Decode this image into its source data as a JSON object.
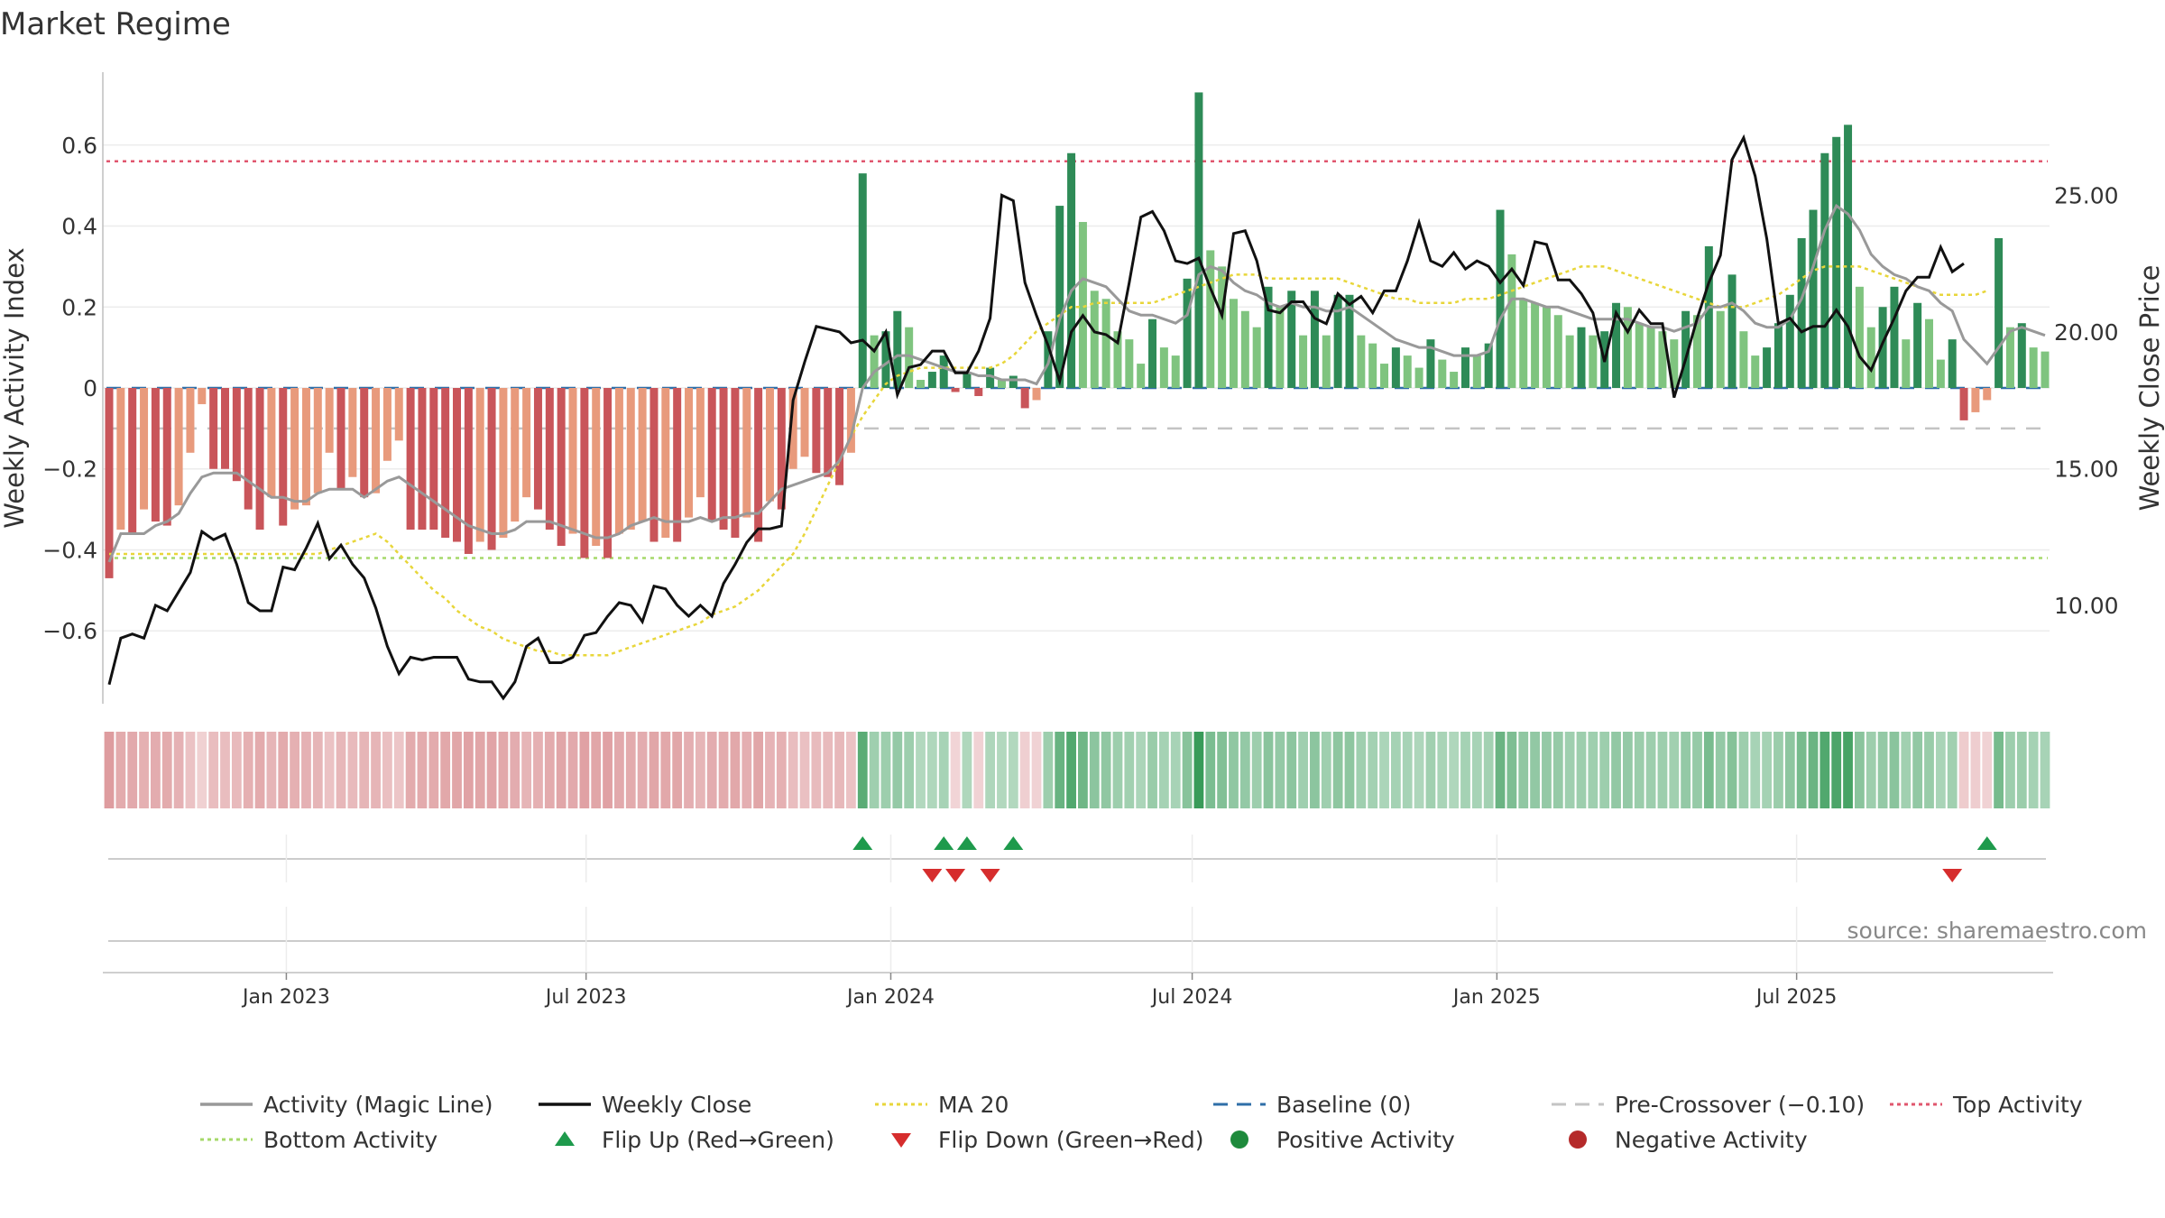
{
  "title": "Market Regime",
  "source": "source: sharemaestro.com",
  "axes": {
    "left_label": "Weekly Activity Index",
    "right_label": "Weekly Close Price",
    "left_ticks": [
      "0.6",
      "0.4",
      "0.2",
      "0",
      "−0.2",
      "−0.4",
      "−0.6"
    ],
    "right_ticks": [
      "25.00",
      "20.00",
      "15.00",
      "10.00"
    ],
    "x_ticks": [
      "Jan 2023",
      "Jul 2023",
      "Jan 2024",
      "Jul 2024",
      "Jan 2025",
      "Jul 2025"
    ]
  },
  "legend": [
    {
      "label": "Activity (Magic Line)",
      "kind": "line",
      "color": "#999999"
    },
    {
      "label": "Weekly Close",
      "kind": "line",
      "color": "#111111"
    },
    {
      "label": "MA 20",
      "kind": "dotted",
      "color": "#e8d63a"
    },
    {
      "label": "Baseline (0)",
      "kind": "dashed",
      "color": "#2f6fa8"
    },
    {
      "label": "Pre-Crossover (−0.10)",
      "kind": "dashed",
      "color": "#c4c4c4"
    },
    {
      "label": "Top Activity",
      "kind": "dotted",
      "color": "#e0566e"
    },
    {
      "label": "Bottom Activity",
      "kind": "dotted",
      "color": "#a6d96a"
    },
    {
      "label": "Flip Up (Red→Green)",
      "kind": "tri-up",
      "color": "#1e9a4c"
    },
    {
      "label": "Flip Down (Green→Red)",
      "kind": "tri-down",
      "color": "#d62d2d"
    },
    {
      "label": "Positive Activity",
      "kind": "dot",
      "color": "#1e8a3c"
    },
    {
      "label": "Negative Activity",
      "kind": "dot",
      "color": "#b52a2a"
    }
  ],
  "colors": {
    "neg_dark": "#c9555a",
    "neg_light": "#e89a7c",
    "pos_dark": "#2e8b57",
    "pos_light": "#7fc47f",
    "top_line": "#e0566e",
    "bottom_line": "#a6d96a",
    "baseline": "#2f6fa8",
    "pre_crossover": "#c4c4c4",
    "close": "#111111",
    "magic": "#999999",
    "ma20": "#e8d63a"
  },
  "chart_data": {
    "type": "bar",
    "x_start": "2022-09-16",
    "x_step_days": 7,
    "y_left_range": [
      -0.78,
      0.78
    ],
    "y_right_range": [
      6.4,
      29.5
    ],
    "grid": true,
    "legend_position": "bottom",
    "thresholds": {
      "top_activity": 0.56,
      "bottom_activity": -0.42,
      "baseline": 0,
      "pre_crossover": -0.1
    },
    "activity": [
      -0.47,
      -0.35,
      -0.36,
      -0.3,
      -0.33,
      -0.34,
      -0.29,
      -0.16,
      -0.04,
      -0.2,
      -0.2,
      -0.23,
      -0.3,
      -0.35,
      -0.27,
      -0.34,
      -0.3,
      -0.29,
      -0.26,
      -0.16,
      -0.25,
      -0.22,
      -0.27,
      -0.26,
      -0.18,
      -0.13,
      -0.35,
      -0.35,
      -0.35,
      -0.37,
      -0.38,
      -0.41,
      -0.38,
      -0.4,
      -0.37,
      -0.33,
      -0.27,
      -0.3,
      -0.35,
      -0.39,
      -0.36,
      -0.42,
      -0.39,
      -0.42,
      -0.36,
      -0.35,
      -0.33,
      -0.38,
      -0.37,
      -0.38,
      -0.32,
      -0.27,
      -0.33,
      -0.35,
      -0.37,
      -0.32,
      -0.38,
      -0.28,
      -0.3,
      -0.2,
      -0.17,
      -0.21,
      -0.22,
      -0.24,
      -0.16,
      0.53,
      0.13,
      0.14,
      0.19,
      0.15,
      0.02,
      0.04,
      0.08,
      -0.01,
      0.04,
      -0.02,
      0.05,
      0.02,
      0.03,
      -0.05,
      -0.03,
      0.14,
      0.45,
      0.58,
      0.41,
      0.24,
      0.22,
      0.14,
      0.12,
      0.06,
      0.17,
      0.1,
      0.08,
      0.27,
      0.73,
      0.34,
      0.3,
      0.22,
      0.19,
      0.15,
      0.25,
      0.2,
      0.24,
      0.13,
      0.24,
      0.13,
      0.23,
      0.23,
      0.13,
      0.11,
      0.06,
      0.1,
      0.08,
      0.05,
      0.12,
      0.07,
      0.04,
      0.1,
      0.08,
      0.11,
      0.44,
      0.33,
      0.22,
      0.21,
      0.2,
      0.18,
      0.13,
      0.15,
      0.13,
      0.14,
      0.21,
      0.2,
      0.16,
      0.15,
      0.14,
      0.12,
      0.19,
      0.18,
      0.35,
      0.19,
      0.28,
      0.14,
      0.08,
      0.1,
      0.16,
      0.23,
      0.37,
      0.44,
      0.58,
      0.62,
      0.65,
      0.25,
      0.15,
      0.2,
      0.25,
      0.12,
      0.21,
      0.17,
      0.07,
      0.12,
      -0.08,
      -0.06,
      -0.03,
      0.37,
      0.15,
      0.16,
      0.1,
      0.09
    ],
    "close": [
      7.1,
      8.8,
      8.95,
      8.8,
      10.0,
      9.8,
      10.5,
      11.2,
      12.7,
      12.4,
      12.6,
      11.5,
      10.1,
      9.8,
      9.8,
      11.4,
      11.3,
      12.1,
      13.0,
      11.7,
      12.2,
      11.5,
      11.0,
      9.9,
      8.5,
      7.5,
      8.1,
      8.0,
      8.1,
      8.1,
      8.1,
      7.3,
      7.2,
      7.2,
      6.6,
      7.2,
      8.5,
      8.8,
      7.9,
      7.9,
      8.1,
      8.9,
      9.0,
      9.6,
      10.1,
      10.0,
      9.4,
      10.7,
      10.6,
      10.0,
      9.6,
      10.0,
      9.6,
      10.8,
      11.5,
      12.3,
      12.8,
      12.8,
      12.9,
      17.5,
      18.9,
      20.2,
      20.1,
      20.0,
      19.6,
      19.7,
      19.3,
      20.0,
      17.7,
      18.7,
      18.8,
      19.3,
      19.3,
      18.5,
      18.5,
      19.3,
      20.5,
      25.0,
      24.8,
      21.8,
      20.6,
      19.5,
      18.2,
      20.0,
      20.6,
      20.0,
      19.9,
      19.6,
      21.8,
      24.2,
      24.4,
      23.7,
      22.6,
      22.5,
      22.7,
      21.6,
      20.6,
      23.6,
      23.7,
      22.6,
      20.8,
      20.7,
      21.1,
      21.1,
      20.5,
      20.3,
      21.4,
      21.0,
      21.3,
      20.7,
      21.5,
      21.5,
      22.6,
      24.0,
      22.6,
      22.4,
      22.9,
      22.3,
      22.6,
      22.4,
      21.8,
      22.3,
      21.7,
      23.3,
      23.2,
      21.9,
      21.9,
      21.4,
      20.7,
      18.9,
      20.7,
      20.0,
      20.8,
      20.3,
      20.3,
      17.6,
      19.0,
      20.5,
      21.8,
      22.8,
      26.3,
      27.1,
      25.7,
      23.4,
      20.3,
      20.5,
      20.0,
      20.2,
      20.2,
      20.8,
      20.2,
      19.1,
      18.6,
      19.6,
      20.5,
      21.5,
      22.0,
      22.0,
      23.1,
      22.2,
      22.5
    ],
    "magic": [
      -0.43,
      -0.36,
      -0.36,
      -0.36,
      -0.34,
      -0.33,
      -0.31,
      -0.26,
      -0.22,
      -0.21,
      -0.21,
      -0.21,
      -0.23,
      -0.25,
      -0.27,
      -0.27,
      -0.28,
      -0.28,
      -0.26,
      -0.25,
      -0.25,
      -0.25,
      -0.27,
      -0.25,
      -0.23,
      -0.22,
      -0.24,
      -0.26,
      -0.28,
      -0.3,
      -0.32,
      -0.34,
      -0.35,
      -0.36,
      -0.36,
      -0.35,
      -0.33,
      -0.33,
      -0.33,
      -0.34,
      -0.35,
      -0.36,
      -0.37,
      -0.37,
      -0.36,
      -0.34,
      -0.33,
      -0.32,
      -0.33,
      -0.33,
      -0.33,
      -0.32,
      -0.33,
      -0.32,
      -0.32,
      -0.31,
      -0.31,
      -0.28,
      -0.25,
      -0.24,
      -0.23,
      -0.22,
      -0.21,
      -0.18,
      -0.12,
      0.0,
      0.04,
      0.06,
      0.08,
      0.08,
      0.07,
      0.06,
      0.05,
      0.04,
      0.04,
      0.03,
      0.03,
      0.02,
      0.02,
      0.02,
      0.01,
      0.06,
      0.17,
      0.24,
      0.27,
      0.26,
      0.25,
      0.22,
      0.19,
      0.18,
      0.18,
      0.17,
      0.16,
      0.18,
      0.28,
      0.3,
      0.29,
      0.26,
      0.24,
      0.23,
      0.21,
      0.2,
      0.21,
      0.2,
      0.2,
      0.19,
      0.19,
      0.2,
      0.18,
      0.16,
      0.14,
      0.12,
      0.11,
      0.1,
      0.1,
      0.09,
      0.08,
      0.08,
      0.08,
      0.09,
      0.17,
      0.22,
      0.22,
      0.21,
      0.2,
      0.2,
      0.19,
      0.18,
      0.17,
      0.17,
      0.17,
      0.17,
      0.16,
      0.15,
      0.15,
      0.14,
      0.15,
      0.16,
      0.2,
      0.2,
      0.21,
      0.19,
      0.16,
      0.15,
      0.15,
      0.17,
      0.22,
      0.3,
      0.39,
      0.45,
      0.43,
      0.39,
      0.33,
      0.3,
      0.28,
      0.27,
      0.25,
      0.24,
      0.21,
      0.19,
      0.12,
      0.09,
      0.06,
      0.1,
      0.14,
      0.15,
      0.14,
      0.13
    ],
    "ma20": [
      -0.41,
      -0.41,
      -0.41,
      -0.41,
      -0.41,
      -0.41,
      -0.41,
      -0.41,
      -0.41,
      -0.41,
      -0.41,
      -0.41,
      -0.41,
      -0.41,
      -0.41,
      -0.41,
      -0.41,
      -0.41,
      -0.41,
      -0.4,
      -0.39,
      -0.38,
      -0.37,
      -0.36,
      -0.38,
      -0.41,
      -0.44,
      -0.47,
      -0.5,
      -0.52,
      -0.55,
      -0.57,
      -0.59,
      -0.6,
      -0.62,
      -0.63,
      -0.64,
      -0.65,
      -0.65,
      -0.66,
      -0.66,
      -0.66,
      -0.66,
      -0.66,
      -0.65,
      -0.64,
      -0.63,
      -0.62,
      -0.61,
      -0.6,
      -0.59,
      -0.58,
      -0.56,
      -0.55,
      -0.54,
      -0.52,
      -0.5,
      -0.47,
      -0.44,
      -0.41,
      -0.36,
      -0.3,
      -0.24,
      -0.18,
      -0.12,
      -0.07,
      -0.03,
      0.01,
      0.03,
      0.04,
      0.05,
      0.05,
      0.05,
      0.05,
      0.05,
      0.05,
      0.05,
      0.06,
      0.08,
      0.11,
      0.14,
      0.16,
      0.18,
      0.2,
      0.2,
      0.21,
      0.21,
      0.21,
      0.21,
      0.21,
      0.21,
      0.22,
      0.23,
      0.24,
      0.25,
      0.26,
      0.27,
      0.28,
      0.28,
      0.28,
      0.27,
      0.27,
      0.27,
      0.27,
      0.27,
      0.27,
      0.27,
      0.26,
      0.25,
      0.24,
      0.23,
      0.22,
      0.22,
      0.21,
      0.21,
      0.21,
      0.21,
      0.22,
      0.22,
      0.22,
      0.23,
      0.24,
      0.25,
      0.26,
      0.27,
      0.28,
      0.29,
      0.3,
      0.3,
      0.3,
      0.29,
      0.28,
      0.27,
      0.26,
      0.25,
      0.24,
      0.23,
      0.22,
      0.21,
      0.2,
      0.2,
      0.2,
      0.21,
      0.22,
      0.23,
      0.25,
      0.27,
      0.29,
      0.3,
      0.3,
      0.3,
      0.3,
      0.29,
      0.28,
      0.27,
      0.26,
      0.25,
      0.24,
      0.23,
      0.23,
      0.23,
      0.23,
      0.24
    ],
    "flip_up_weeks": [
      65,
      72,
      74,
      78,
      162
    ],
    "flip_down_weeks": [
      71,
      73,
      76,
      159
    ]
  }
}
